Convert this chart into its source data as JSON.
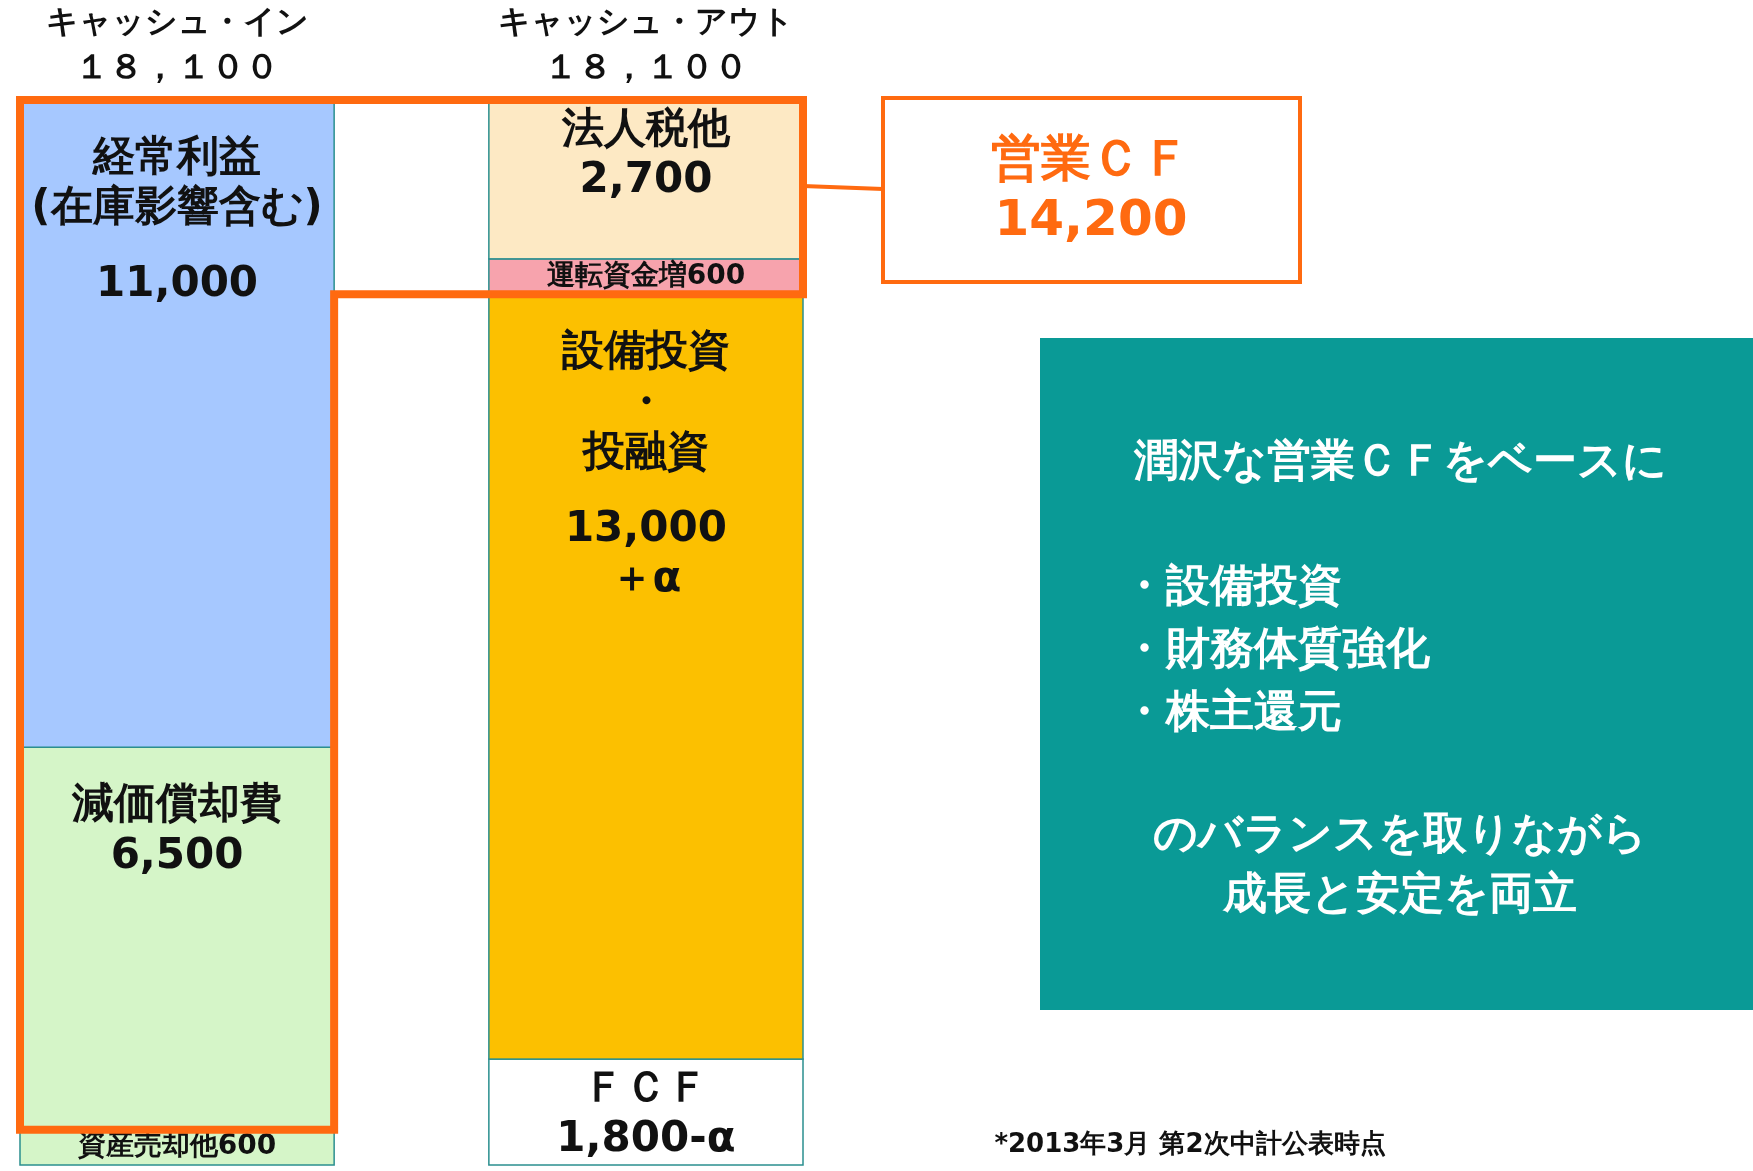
{
  "chart_data": {
    "type": "bar",
    "stacked": true,
    "categories": [
      "キャッシュ・イン",
      "キャッシュ・アウト"
    ],
    "totals": [
      "１８，１００",
      "１８，１００"
    ],
    "series": [
      {
        "values": [
          600,
          1800
        ],
        "colors": [
          "#d5f5c8",
          "#ffffff"
        ],
        "value_labels": [
          "資産売却他600",
          "ＦＣＦ\n1,800-α"
        ]
      },
      {
        "values": [
          6500,
          13000
        ],
        "colors": [
          "#d5f5c8",
          "#fcc000"
        ],
        "value_labels": [
          "減価償却費\n6,500",
          "設備投資・投融資\n\n13,000\n＋α"
        ]
      },
      {
        "values": [
          11000,
          600
        ],
        "colors": [
          "#a6c8ff",
          "#f7a3ad"
        ],
        "value_labels": [
          "経常利益\n(在庫影響含む)\n\n11,000",
          "運転資金増600"
        ]
      },
      {
        "values": [
          null,
          2700
        ],
        "colors": [
          null,
          "#fde9c4"
        ],
        "value_labels": [
          null,
          "法人税他\n2,700"
        ]
      }
    ],
    "annotations": [
      "営業ＣＦ\n14,200",
      "潤沢な営業ＣＦをベースに",
      "・設備投資",
      "・財務体質強化",
      "・株主還元",
      "のバランスを取りながら",
      "成長と安定を両立",
      "*2013年3月  第2次中計公表時点"
    ]
  }
}
